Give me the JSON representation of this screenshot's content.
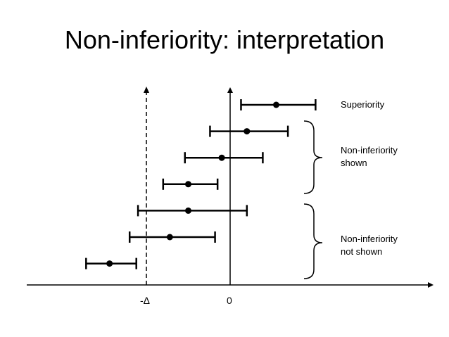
{
  "slide": {
    "title": "Non-inferiority: interpretation"
  },
  "axis": {
    "margin_label": "-Δ",
    "zero_label": "0"
  },
  "labels": {
    "superiority": "Superiority",
    "ni_shown_line1": "Non-inferiority",
    "ni_shown_line2": "shown",
    "ni_not_shown_line1": "Non-inferiority",
    "ni_not_shown_line2": "not shown"
  },
  "intervals": [
    {
      "estimate": 0.55,
      "lower": 0.13,
      "upper": 1.02
    },
    {
      "estimate": 0.2,
      "lower": -0.24,
      "upper": 0.69
    },
    {
      "estimate": -0.1,
      "lower": -0.54,
      "upper": 0.39
    },
    {
      "estimate": -0.5,
      "lower": -0.8,
      "upper": -0.15
    },
    {
      "estimate": -0.5,
      "lower": -1.1,
      "upper": 0.2
    },
    {
      "estimate": -0.72,
      "lower": -1.2,
      "upper": -0.18
    },
    {
      "estimate": -1.44,
      "lower": -1.72,
      "upper": -1.12
    }
  ],
  "margin_value": -1,
  "colors": {
    "line": "#000000"
  }
}
